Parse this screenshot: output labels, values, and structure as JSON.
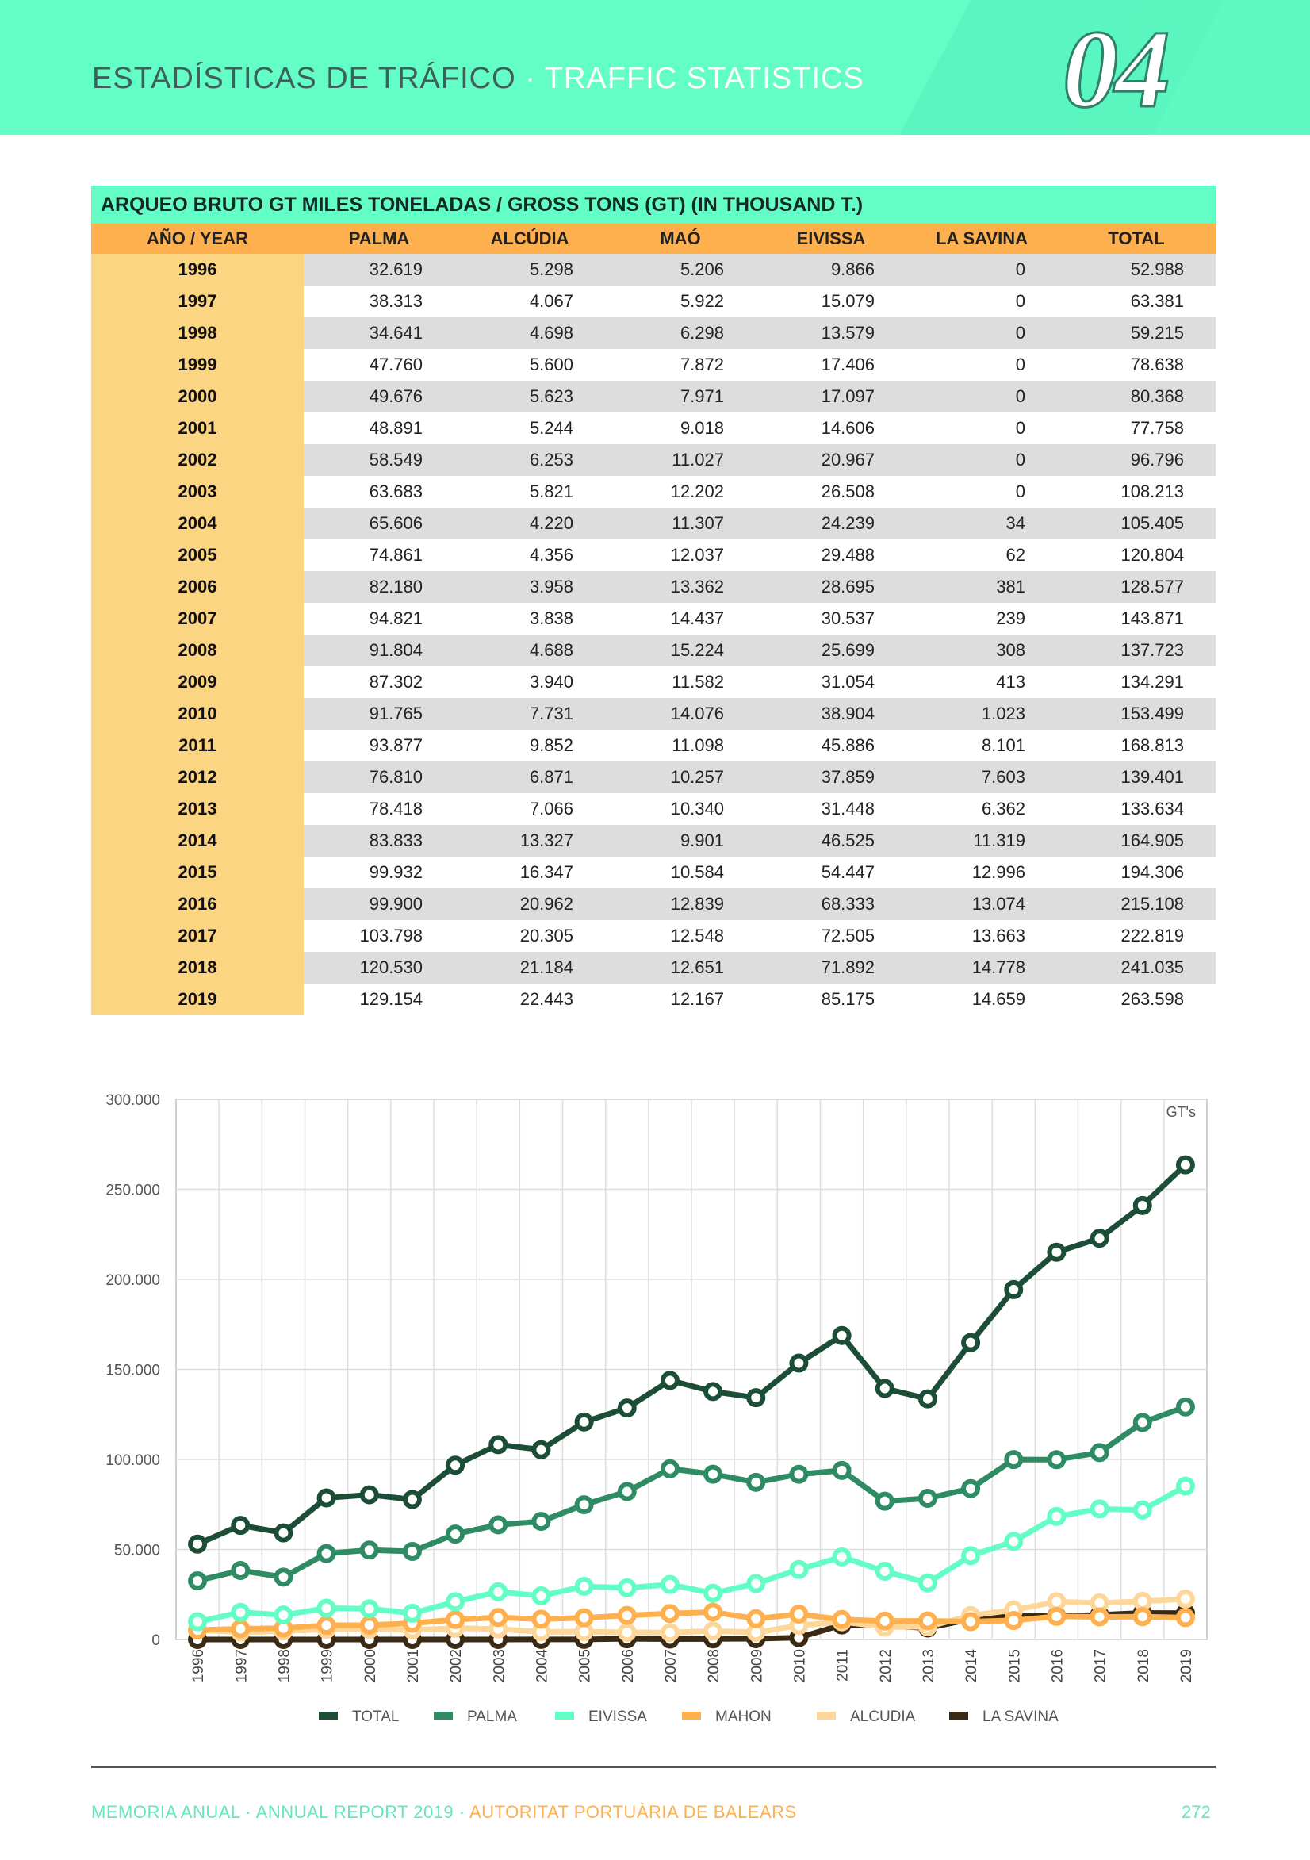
{
  "header": {
    "title_es": "ESTADÍSTICAS DE TRÁFICO",
    "separator": " · ",
    "title_en": "TRAFFIC STATISTICS",
    "chapter": "04"
  },
  "table": {
    "title": "ARQUEO BRUTO GT MILES TONELADAS / GROSS TONS (GT) (IN THOUSAND T.)",
    "columns": [
      "AÑO / YEAR",
      "PALMA",
      "ALCÚDIA",
      "MAÓ",
      "EIVISSA",
      "LA SAVINA",
      "TOTAL"
    ],
    "rows": [
      [
        "1996",
        "32.619",
        "5.298",
        "5.206",
        "9.866",
        "0",
        "52.988"
      ],
      [
        "1997",
        "38.313",
        "4.067",
        "5.922",
        "15.079",
        "0",
        "63.381"
      ],
      [
        "1998",
        "34.641",
        "4.698",
        "6.298",
        "13.579",
        "0",
        "59.215"
      ],
      [
        "1999",
        "47.760",
        "5.600",
        "7.872",
        "17.406",
        "0",
        "78.638"
      ],
      [
        "2000",
        "49.676",
        "5.623",
        "7.971",
        "17.097",
        "0",
        "80.368"
      ],
      [
        "2001",
        "48.891",
        "5.244",
        "9.018",
        "14.606",
        "0",
        "77.758"
      ],
      [
        "2002",
        "58.549",
        "6.253",
        "11.027",
        "20.967",
        "0",
        "96.796"
      ],
      [
        "2003",
        "63.683",
        "5.821",
        "12.202",
        "26.508",
        "0",
        "108.213"
      ],
      [
        "2004",
        "65.606",
        "4.220",
        "11.307",
        "24.239",
        "34",
        "105.405"
      ],
      [
        "2005",
        "74.861",
        "4.356",
        "12.037",
        "29.488",
        "62",
        "120.804"
      ],
      [
        "2006",
        "82.180",
        "3.958",
        "13.362",
        "28.695",
        "381",
        "128.577"
      ],
      [
        "2007",
        "94.821",
        "3.838",
        "14.437",
        "30.537",
        "239",
        "143.871"
      ],
      [
        "2008",
        "91.804",
        "4.688",
        "15.224",
        "25.699",
        "308",
        "137.723"
      ],
      [
        "2009",
        "87.302",
        "3.940",
        "11.582",
        "31.054",
        "413",
        "134.291"
      ],
      [
        "2010",
        "91.765",
        "7.731",
        "14.076",
        "38.904",
        "1.023",
        "153.499"
      ],
      [
        "2011",
        "93.877",
        "9.852",
        "11.098",
        "45.886",
        "8.101",
        "168.813"
      ],
      [
        "2012",
        "76.810",
        "6.871",
        "10.257",
        "37.859",
        "7.603",
        "139.401"
      ],
      [
        "2013",
        "78.418",
        "7.066",
        "10.340",
        "31.448",
        "6.362",
        "133.634"
      ],
      [
        "2014",
        "83.833",
        "13.327",
        "9.901",
        "46.525",
        "11.319",
        "164.905"
      ],
      [
        "2015",
        "99.932",
        "16.347",
        "10.584",
        "54.447",
        "12.996",
        "194.306"
      ],
      [
        "2016",
        "99.900",
        "20.962",
        "12.839",
        "68.333",
        "13.074",
        "215.108"
      ],
      [
        "2017",
        "103.798",
        "20.305",
        "12.548",
        "72.505",
        "13.663",
        "222.819"
      ],
      [
        "2018",
        "120.530",
        "21.184",
        "12.651",
        "71.892",
        "14.778",
        "241.035"
      ],
      [
        "2019",
        "129.154",
        "22.443",
        "12.167",
        "85.175",
        "14.659",
        "263.598"
      ]
    ]
  },
  "chart_data": {
    "type": "line",
    "title": "",
    "unit_label": "GT's",
    "x": [
      "1996",
      "1997",
      "1998",
      "1999",
      "2000",
      "2001",
      "2002",
      "2003",
      "2004",
      "2005",
      "2006",
      "2007",
      "2008",
      "2009",
      "2010",
      "2011",
      "2012",
      "2013",
      "2014",
      "2015",
      "2016",
      "2017",
      "2018",
      "2019"
    ],
    "ylim": [
      0,
      300000
    ],
    "yticks": [
      0,
      50000,
      100000,
      150000,
      200000,
      250000,
      300000
    ],
    "ytick_labels": [
      "0",
      "50.000",
      "100.000",
      "150.000",
      "200.000",
      "250.000",
      "300.000"
    ],
    "grid": true,
    "legend_position": "bottom",
    "series": [
      {
        "name": "LA SAVINA",
        "color": "#3a2a14",
        "values": [
          0,
          0,
          0,
          0,
          0,
          0,
          0,
          0,
          34,
          62,
          381,
          239,
          308,
          413,
          1023,
          8101,
          7603,
          6362,
          11319,
          12996,
          13074,
          13663,
          14778,
          14659
        ]
      },
      {
        "name": "ALCUDIA",
        "color": "#fdd79a",
        "values": [
          5298,
          4067,
          4698,
          5600,
          5623,
          5244,
          6253,
          5821,
          4220,
          4356,
          3958,
          3838,
          4688,
          3940,
          7731,
          9852,
          6871,
          7066,
          13327,
          16347,
          20962,
          20305,
          21184,
          22443
        ]
      },
      {
        "name": "MAHON",
        "color": "#fdb04d",
        "values": [
          5206,
          5922,
          6298,
          7872,
          7971,
          9018,
          11027,
          12202,
          11307,
          12037,
          13362,
          14437,
          15224,
          11582,
          14076,
          11098,
          10257,
          10340,
          9901,
          10584,
          12839,
          12548,
          12651,
          12167
        ]
      },
      {
        "name": "EIVISSA",
        "color": "#63fdc6",
        "values": [
          9866,
          15079,
          13579,
          17406,
          17097,
          14606,
          20967,
          26508,
          24239,
          29488,
          28695,
          30537,
          25699,
          31054,
          38904,
          45886,
          37859,
          31448,
          46525,
          54447,
          68333,
          72505,
          71892,
          85175
        ]
      },
      {
        "name": "PALMA",
        "color": "#2e8b63",
        "values": [
          32619,
          38313,
          34641,
          47760,
          49676,
          48891,
          58549,
          63683,
          65606,
          74861,
          82180,
          94821,
          91804,
          87302,
          91765,
          93877,
          76810,
          78418,
          83833,
          99932,
          99900,
          103798,
          120530,
          129154
        ]
      },
      {
        "name": "TOTAL",
        "color": "#1c4d36",
        "values": [
          52988,
          63381,
          59215,
          78638,
          80368,
          77758,
          96796,
          108213,
          105405,
          120804,
          128577,
          143871,
          137723,
          134291,
          153499,
          168813,
          139401,
          133634,
          164905,
          194306,
          215108,
          222819,
          241035,
          263598
        ]
      }
    ],
    "legend_order": [
      "TOTAL",
      "PALMA",
      "EIVISSA",
      "MAHON",
      "ALCUDIA",
      "LA SAVINA"
    ]
  },
  "footer": {
    "left": "MEMORIA ANUAL · ANNUAL REPORT 2019 · ",
    "org": "AUTORITAT PORTUÀRIA DE BALEARS",
    "page": "272"
  }
}
